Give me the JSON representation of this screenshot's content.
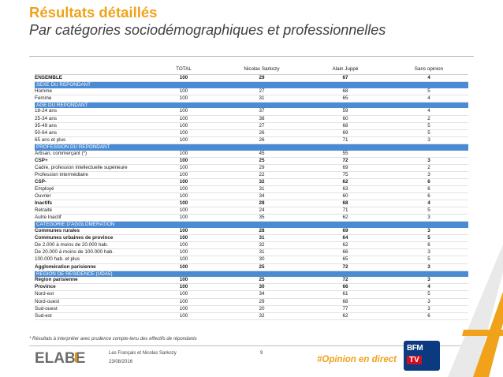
{
  "title": "Résultats détaillés",
  "subtitle": "Par catégories sociodémographiques et professionnelles",
  "table": {
    "headers": [
      "",
      "TOTAL",
      "Nicolas Sarkozy",
      "Alain Juppé",
      "Sans opinion"
    ],
    "rows": [
      {
        "kind": "bold",
        "label": "ENSEMBLE",
        "total": "100",
        "sarkozy": "29",
        "juppe": "67",
        "sans_opinion": "4"
      },
      {
        "kind": "section",
        "label": "SEXE DU REPONDANT"
      },
      {
        "kind": "indent",
        "label": "Homme",
        "total": "100",
        "sarkozy": "27",
        "juppe": "68",
        "sans_opinion": "5"
      },
      {
        "kind": "indent",
        "label": "Femme",
        "total": "100",
        "sarkozy": "31",
        "juppe": "65",
        "sans_opinion": "4"
      },
      {
        "kind": "section",
        "label": "AGE DU REPONDANT"
      },
      {
        "kind": "indent",
        "label": "18-24 ans",
        "total": "100",
        "sarkozy": "37",
        "juppe": "59",
        "sans_opinion": "4"
      },
      {
        "kind": "indent",
        "label": "25-34 ans",
        "total": "100",
        "sarkozy": "38",
        "juppe": "60",
        "sans_opinion": "2"
      },
      {
        "kind": "indent",
        "label": "35-49 ans",
        "total": "100",
        "sarkozy": "27",
        "juppe": "68",
        "sans_opinion": "5"
      },
      {
        "kind": "indent",
        "label": "50-64 ans",
        "total": "100",
        "sarkozy": "26",
        "juppe": "69",
        "sans_opinion": "5"
      },
      {
        "kind": "indent",
        "label": "65 ans et plus",
        "total": "100",
        "sarkozy": "26",
        "juppe": "71",
        "sans_opinion": "3"
      },
      {
        "kind": "section",
        "label": "PROFESSION DU REPONDANT"
      },
      {
        "kind": "indent",
        "label": "Artisan, commerçant (*)",
        "total": "100",
        "sarkozy": "45",
        "juppe": "55",
        "sans_opinion": ""
      },
      {
        "kind": "bold",
        "label": "CSP+",
        "total": "100",
        "sarkozy": "25",
        "juppe": "72",
        "sans_opinion": "3"
      },
      {
        "kind": "indent2",
        "label": "Cadre, profession intellectuelle supérieure",
        "total": "100",
        "sarkozy": "29",
        "juppe": "69",
        "sans_opinion": "2"
      },
      {
        "kind": "indent2",
        "label": "Profession intermédiaire",
        "total": "100",
        "sarkozy": "22",
        "juppe": "75",
        "sans_opinion": "3"
      },
      {
        "kind": "bold",
        "label": "CSP-",
        "total": "100",
        "sarkozy": "32",
        "juppe": "62",
        "sans_opinion": "6"
      },
      {
        "kind": "indent2",
        "label": "Employé",
        "total": "100",
        "sarkozy": "31",
        "juppe": "63",
        "sans_opinion": "6"
      },
      {
        "kind": "indent2",
        "label": "Ouvrier",
        "total": "100",
        "sarkozy": "34",
        "juppe": "60",
        "sans_opinion": "6"
      },
      {
        "kind": "bold",
        "label": "Inactifs",
        "total": "100",
        "sarkozy": "28",
        "juppe": "68",
        "sans_opinion": "4"
      },
      {
        "kind": "indent2",
        "label": "Retraité",
        "total": "100",
        "sarkozy": "24",
        "juppe": "71",
        "sans_opinion": "5"
      },
      {
        "kind": "indent2",
        "label": "Autre Inactif",
        "total": "100",
        "sarkozy": "35",
        "juppe": "62",
        "sans_opinion": "3"
      },
      {
        "kind": "section",
        "label": "CATEGORIE D'AGGLOMERATION"
      },
      {
        "kind": "bold",
        "label": "Communes rurales",
        "total": "100",
        "sarkozy": "28",
        "juppe": "69",
        "sans_opinion": "3"
      },
      {
        "kind": "bold",
        "label": "Communes urbaines de province",
        "total": "100",
        "sarkozy": "31",
        "juppe": "64",
        "sans_opinion": "5"
      },
      {
        "kind": "indent2",
        "label": "De 2.000 à moins de 20.000 hab.",
        "total": "100",
        "sarkozy": "32",
        "juppe": "62",
        "sans_opinion": "6"
      },
      {
        "kind": "indent2",
        "label": "De 20.000 à moins de 100.000 hab.",
        "total": "100",
        "sarkozy": "31",
        "juppe": "66",
        "sans_opinion": "3"
      },
      {
        "kind": "indent2",
        "label": "100.000 hab. et plus",
        "total": "100",
        "sarkozy": "30",
        "juppe": "65",
        "sans_opinion": "5"
      },
      {
        "kind": "bold",
        "label": "Agglomération parisienne",
        "total": "100",
        "sarkozy": "25",
        "juppe": "72",
        "sans_opinion": "3"
      },
      {
        "kind": "section",
        "label": "REGION DE RESIDENCE (UDA5)"
      },
      {
        "kind": "bold",
        "label": "Région parisienne",
        "total": "100",
        "sarkozy": "25",
        "juppe": "72",
        "sans_opinion": "3"
      },
      {
        "kind": "bold",
        "label": "Province",
        "total": "100",
        "sarkozy": "30",
        "juppe": "66",
        "sans_opinion": "4"
      },
      {
        "kind": "indent2",
        "label": "Nord-est",
        "total": "100",
        "sarkozy": "34",
        "juppe": "61",
        "sans_opinion": "5"
      },
      {
        "kind": "indent2",
        "label": "Nord-ouest",
        "total": "100",
        "sarkozy": "29",
        "juppe": "68",
        "sans_opinion": "3"
      },
      {
        "kind": "indent2",
        "label": "Sud-ouest",
        "total": "100",
        "sarkozy": "20",
        "juppe": "77",
        "sans_opinion": "3"
      },
      {
        "kind": "indent2",
        "label": "Sud-est",
        "total": "100",
        "sarkozy": "32",
        "juppe": "62",
        "sans_opinion": "6"
      }
    ]
  },
  "footer": {
    "note": "* Résultats à interpréter avec prudence compte-tenu des effectifs de répondants",
    "logo": "ELABE",
    "subject": "Les Français et Nicolas Sarkozy",
    "date": "23/08/2016",
    "page": "9",
    "hashtag": "#Opinion en direct",
    "partner_top": "BFM",
    "partner_bottom": "TV"
  },
  "colors": {
    "accent": "#f0a21b",
    "section_header": "#4a8bd3",
    "logo_grey": "#6b6b6b",
    "logo_orange": "#e8930c"
  }
}
